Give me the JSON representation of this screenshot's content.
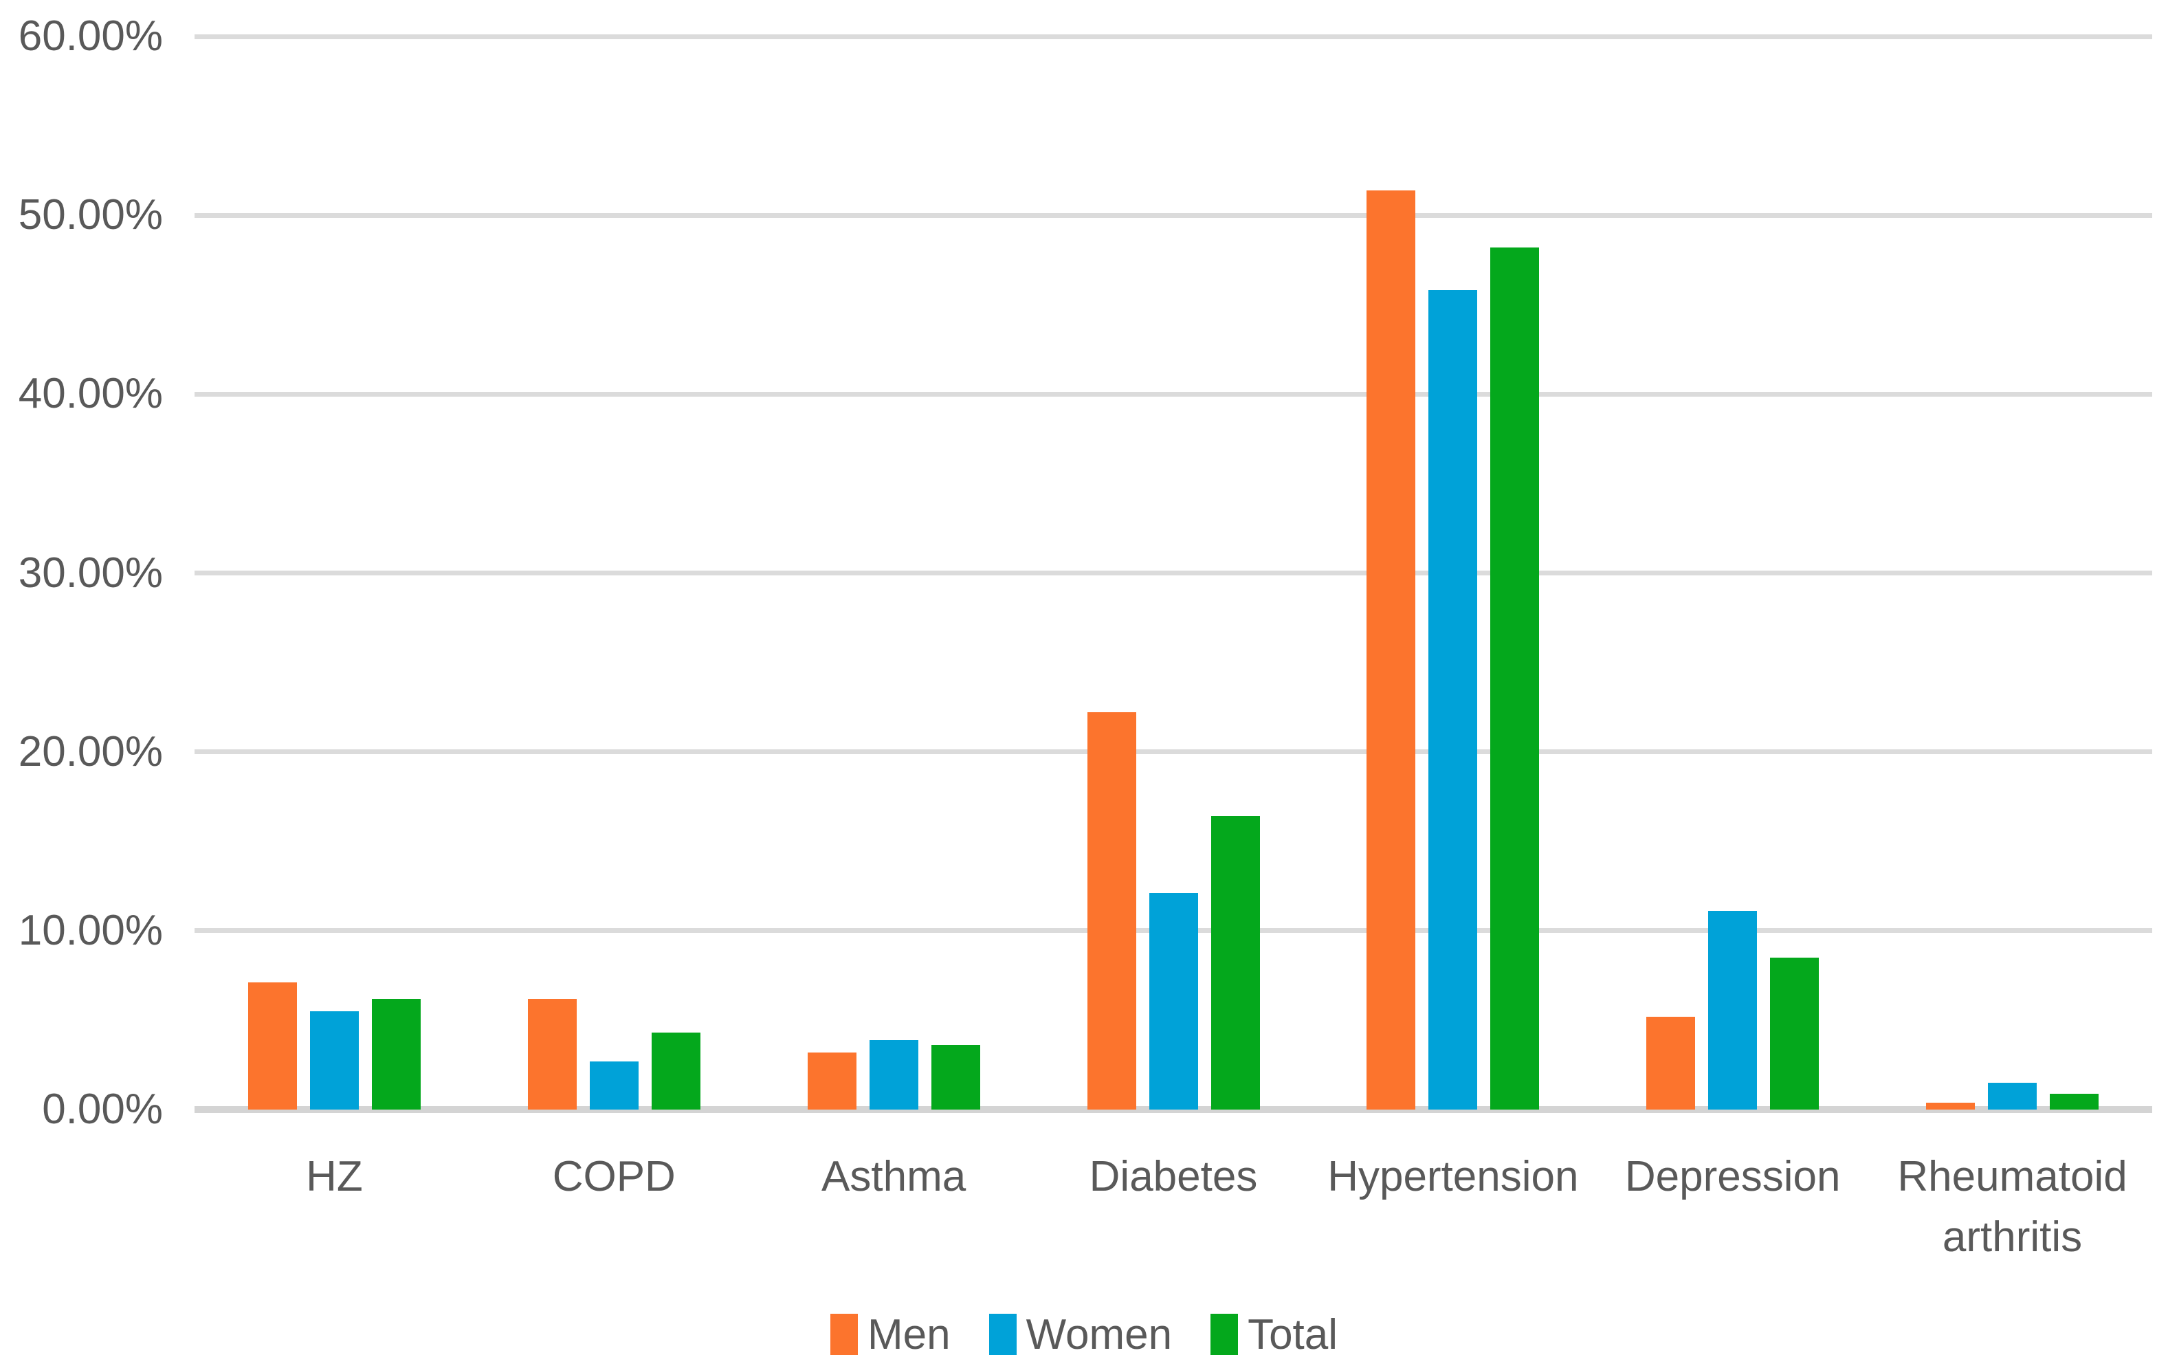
{
  "chart_data": {
    "type": "bar",
    "title": "",
    "xlabel": "",
    "ylabel": "",
    "categories": [
      "HZ",
      "COPD",
      "Asthma",
      "Diabetes",
      "Hypertension",
      "Depression",
      "Rheumatoid arthritis"
    ],
    "series": [
      {
        "name": "Men",
        "color": "#FC742D",
        "values": [
          7.1,
          6.2,
          3.2,
          22.2,
          51.4,
          5.2,
          0.4
        ]
      },
      {
        "name": "Women",
        "color": "#00A2D8",
        "values": [
          5.5,
          2.7,
          3.9,
          12.1,
          45.8,
          11.1,
          1.5
        ]
      },
      {
        "name": "Total",
        "color": "#04A81C",
        "values": [
          6.2,
          4.3,
          3.6,
          16.4,
          48.2,
          8.5,
          0.9
        ]
      }
    ],
    "y_axis": {
      "min": 0,
      "max": 60,
      "step": 10,
      "tick_labels": [
        "0.00%",
        "10.00%",
        "20.00%",
        "30.00%",
        "40.00%",
        "50.00%",
        "60.00%"
      ]
    },
    "grid": true,
    "legend_position": "bottom",
    "style_colors": {
      "gridline": "#DBDBDB",
      "axis_line": "#D4D4D4",
      "axis_text": "#595959",
      "background": "#FFFFFF"
    }
  }
}
